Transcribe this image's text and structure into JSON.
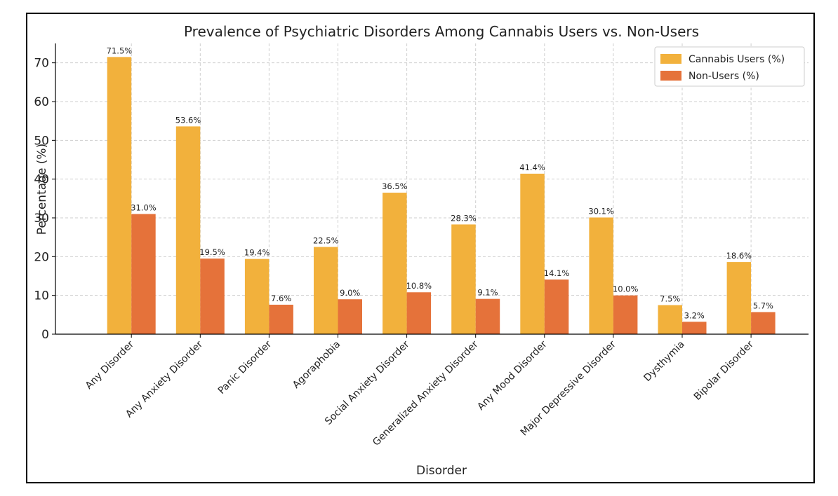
{
  "chart_data": {
    "type": "bar",
    "title": "Prevalence of Psychiatric Disorders Among Cannabis Users vs. Non-Users",
    "xlabel": "Disorder",
    "ylabel": "Percentage (%)",
    "ylim": [
      0,
      75
    ],
    "yticks": [
      0,
      10,
      20,
      30,
      40,
      50,
      60,
      70
    ],
    "grid": true,
    "legend_position": "top-right",
    "categories": [
      "Any Disorder",
      "Any Anxiety Disorder",
      "Panic Disorder",
      "Agoraphobia",
      "Social Anxiety Disorder",
      "Generalized Anxiety Disorder",
      "Any Mood Disorder",
      "Major Depressive Disorder",
      "Dysthymia",
      "Bipolar Disorder"
    ],
    "series": [
      {
        "name": "Cannabis Users (%)",
        "color": "#F2B13C",
        "values": [
          71.5,
          53.6,
          19.4,
          22.5,
          36.5,
          28.3,
          41.4,
          30.1,
          7.5,
          18.6
        ],
        "labels": [
          "71.5%",
          "53.6%",
          "19.4%",
          "22.5%",
          "36.5%",
          "28.3%",
          "41.4%",
          "30.1%",
          "7.5%",
          "18.6%"
        ]
      },
      {
        "name": "Non-Users (%)",
        "color": "#E5723A",
        "values": [
          31.0,
          19.5,
          7.6,
          9.0,
          10.8,
          9.1,
          14.1,
          10.0,
          3.2,
          5.7
        ],
        "labels": [
          "31.0%",
          "19.5%",
          "7.6%",
          "9.0%",
          "10.8%",
          "9.1%",
          "14.1%",
          "10.0%",
          "3.2%",
          "5.7%"
        ]
      }
    ]
  }
}
